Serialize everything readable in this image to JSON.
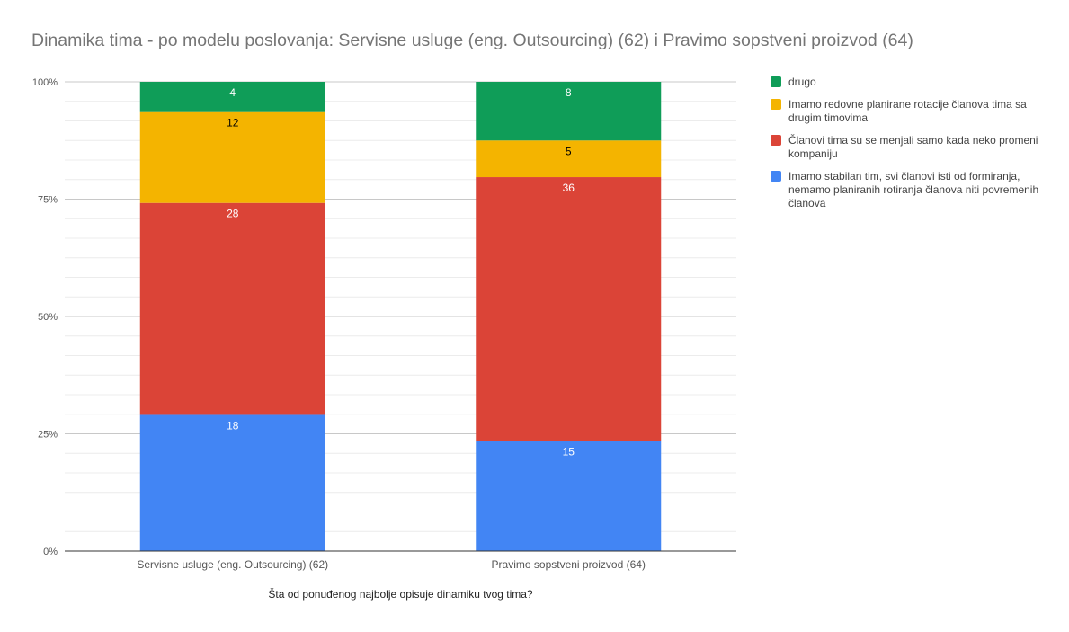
{
  "chart_data": {
    "type": "bar",
    "stacked": "percent",
    "title": "Dinamika tima - po modelu poslovanja: Servisne usluge (eng. Outsourcing) (62) i Pravimo sopstveni proizvod (64)",
    "xlabel": "Šta od ponuđenog najbolje opisuje dinamiku tvog tima?",
    "ylabel": "",
    "ylim": [
      0,
      1
    ],
    "yticks": [
      "0%",
      "25%",
      "50%",
      "75%",
      "100%"
    ],
    "grid": true,
    "legend_position": "right",
    "categories": [
      "Servisne usluge (eng. Outsourcing) (62)",
      "Pravimo sopstveni proizvod (64)"
    ],
    "series": [
      {
        "name": "Imamo stabilan tim, svi članovi isti od formiranja, nemamo planiranih rotiranja članova niti povremenih članova",
        "values": [
          18,
          15
        ],
        "color": "#4285F4",
        "label_color": "#ffffff"
      },
      {
        "name": "Članovi tima su se menjali samo kada neko promeni kompaniju",
        "values": [
          28,
          36
        ],
        "color": "#DB4437",
        "label_color": "#ffffff"
      },
      {
        "name": "Imamo redovne planirane rotacije članova tima sa drugim timovima",
        "values": [
          12,
          5
        ],
        "color": "#F4B400",
        "label_color": "#000000"
      },
      {
        "name": "drugo",
        "values": [
          4,
          8
        ],
        "color": "#0F9D58",
        "label_color": "#ffffff"
      }
    ]
  }
}
